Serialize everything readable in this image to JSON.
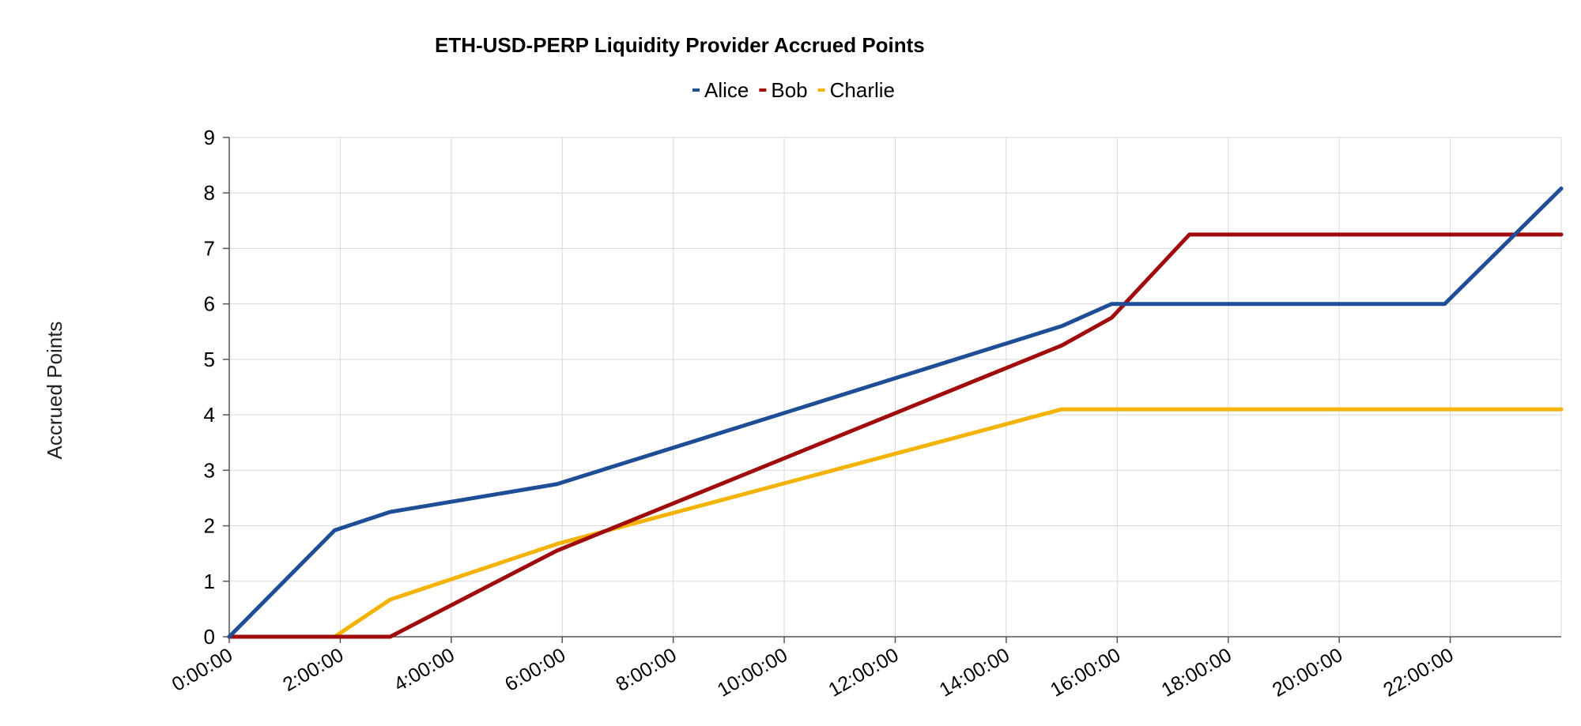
{
  "chart_data": {
    "type": "line",
    "title": "ETH-USD-PERP Liquidity Provider Accrued Points",
    "xlabel": "",
    "ylabel": "Accrued Points",
    "ylim": [
      0,
      9
    ],
    "yticks": [
      "0",
      "1",
      "2",
      "3",
      "4",
      "5",
      "6",
      "7",
      "8",
      "9"
    ],
    "xlim_hours": [
      0,
      24
    ],
    "xticks": [
      "0:00:00",
      "2:00:00",
      "4:00:00",
      "6:00:00",
      "8:00:00",
      "10:00:00",
      "12:00:00",
      "14:00:00",
      "16:00:00",
      "18:00:00",
      "20:00:00",
      "22:00:00"
    ],
    "grid": true,
    "legend_position": "top-center",
    "series": [
      {
        "name": "Alice",
        "color": "#1f4e96",
        "points": [
          [
            0,
            0
          ],
          [
            1.9,
            1.92
          ],
          [
            2.9,
            2.25
          ],
          [
            5.9,
            2.75
          ],
          [
            15.0,
            5.6
          ],
          [
            15.9,
            6.0
          ],
          [
            21.9,
            6.0
          ],
          [
            24.0,
            8.08
          ]
        ]
      },
      {
        "name": "Bob",
        "color": "#a00b0b",
        "points": [
          [
            0,
            0
          ],
          [
            2.9,
            0
          ],
          [
            5.9,
            1.55
          ],
          [
            15.0,
            5.25
          ],
          [
            15.9,
            5.75
          ],
          [
            17.3,
            7.25
          ],
          [
            24.0,
            7.25
          ]
        ]
      },
      {
        "name": "Charlie",
        "color": "#f4b300",
        "points": [
          [
            0,
            0
          ],
          [
            1.9,
            0
          ],
          [
            2.9,
            0.67
          ],
          [
            5.9,
            1.67
          ],
          [
            15.0,
            4.1
          ],
          [
            24.0,
            4.1
          ]
        ]
      }
    ]
  }
}
